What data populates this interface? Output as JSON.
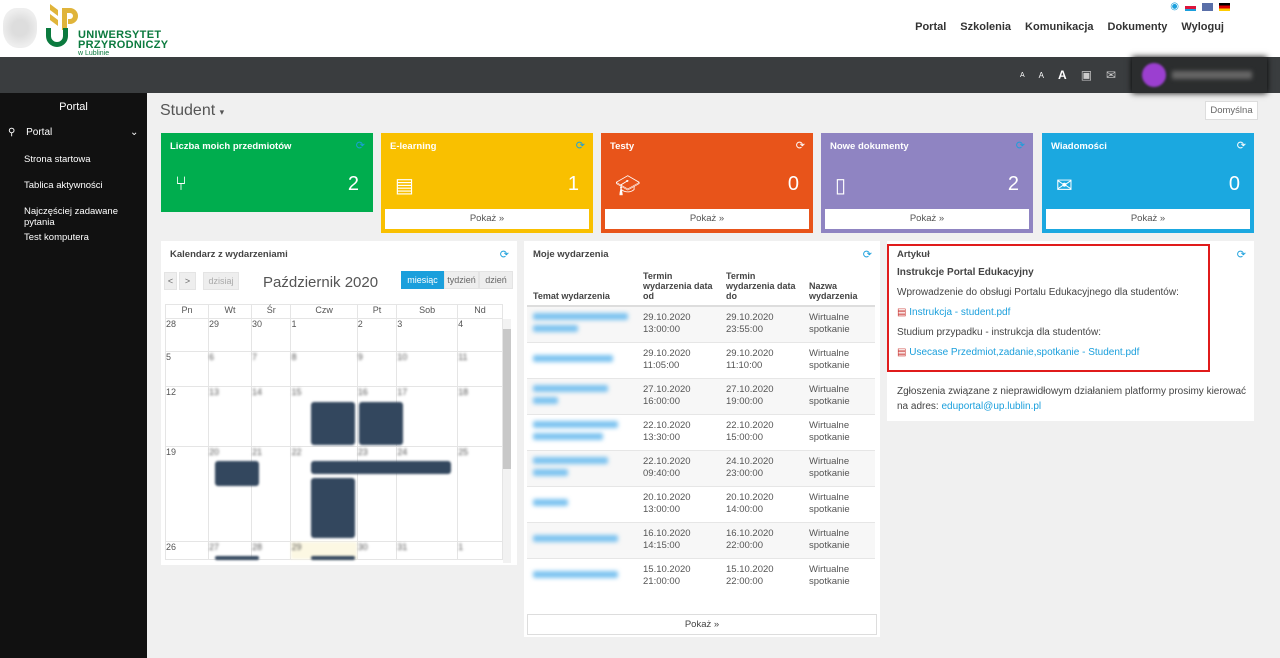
{
  "header": {
    "logo_text": [
      "UNIWERSYTET",
      "PRZYRODNICZY"
    ],
    "logo_sub": "w Lublinie",
    "nav": [
      "Portal",
      "Szkolenia",
      "Komunikacja",
      "Dokumenty",
      "Wyloguj"
    ],
    "languages": [
      "pl",
      "en",
      "de"
    ],
    "font_sizes": [
      "A",
      "A",
      "A"
    ]
  },
  "sidebar": {
    "title": "Portal",
    "section": "Portal",
    "items": [
      "Strona startowa",
      "Tablica aktywności",
      "Najczęściej zadawane pytania",
      "Test komputera"
    ]
  },
  "main": {
    "title": "Student",
    "layout_button": "Domyślna"
  },
  "tiles": [
    {
      "title": "Liczba moich przedmiotów",
      "count": "2",
      "icon": "branch-icon",
      "color": "#00ad4e"
    },
    {
      "title": "E-learning",
      "count": "1",
      "icon": "presentation-icon",
      "color": "#f9c000",
      "button": "Pokaż »"
    },
    {
      "title": "Testy",
      "count": "0",
      "icon": "graduation-cap-icon",
      "color": "#e8541a",
      "button": "Pokaż »"
    },
    {
      "title": "Nowe dokumenty",
      "count": "2",
      "icon": "document-icon",
      "color": "#8f84c2",
      "button": "Pokaż »"
    },
    {
      "title": "Wiadomości",
      "count": "0",
      "icon": "envelope-icon",
      "color": "#1ba8e0",
      "button": "Pokaż »"
    }
  ],
  "calendar": {
    "title": "Kalendarz z wydarzeniami",
    "prev": "<",
    "next": ">",
    "today": "dzisiaj",
    "month": "Październik 2020",
    "views": [
      "miesiąc",
      "tydzień",
      "dzień"
    ],
    "days": [
      "Pn",
      "Wt",
      "Śr",
      "Czw",
      "Pt",
      "Sob",
      "Nd"
    ],
    "weeks": [
      [
        "28",
        "29",
        "30",
        "1",
        "2",
        "3",
        "4"
      ],
      [
        "5",
        "6",
        "7",
        "8",
        "9",
        "10",
        "11"
      ],
      [
        "12",
        "13",
        "14",
        "15",
        "16",
        "17",
        "18"
      ],
      [
        "19",
        "20",
        "21",
        "22",
        "23",
        "24",
        "25"
      ],
      [
        "26",
        "27",
        "28",
        "29",
        "30",
        "31",
        "1"
      ]
    ]
  },
  "events": {
    "title": "Moje wydarzenia",
    "columns": [
      "Temat wydarzenia",
      "Termin wydarzenia data od",
      "Termin wydarzenia data do",
      "Nazwa wydarzenia"
    ],
    "rows": [
      {
        "from": "29.10.2020 13:00:00",
        "to": "29.10.2020 23:55:00",
        "name": "Wirtualne spotkanie"
      },
      {
        "from": "29.10.2020 11:05:00",
        "to": "29.10.2020 11:10:00",
        "name": "Wirtualne spotkanie"
      },
      {
        "from": "27.10.2020 16:00:00",
        "to": "27.10.2020 19:00:00",
        "name": "Wirtualne spotkanie"
      },
      {
        "from": "22.10.2020 13:30:00",
        "to": "22.10.2020 15:00:00",
        "name": "Wirtualne spotkanie"
      },
      {
        "from": "22.10.2020 09:40:00",
        "to": "24.10.2020 23:00:00",
        "name": "Wirtualne spotkanie"
      },
      {
        "from": "20.10.2020 13:00:00",
        "to": "20.10.2020 14:00:00",
        "name": "Wirtualne spotkanie"
      },
      {
        "from": "16.10.2020 14:15:00",
        "to": "16.10.2020 22:00:00",
        "name": "Wirtualne spotkanie"
      },
      {
        "from": "15.10.2020 21:00:00",
        "to": "15.10.2020 22:00:00",
        "name": "Wirtualne spotkanie"
      }
    ],
    "button": "Pokaż »"
  },
  "article": {
    "label": "Artykuł",
    "heading": "Instrukcje Portal Edukacyjny",
    "intro": "Wprowadzenie do obsługi Portalu Edukacyjnego dla studentów:",
    "link1": "Instrukcja - student.pdf",
    "case": "Studium przypadku - instrukcja dla studentów:",
    "link2": "Usecase Przedmiot,zadanie,spotkanie - Student.pdf",
    "contact": "Zgłoszenia związane z nieprawidłowym działaniem platformy prosimy kierować na adres:",
    "email": "eduportal@up.lublin.pl",
    "highlight_color": "#e01b1b"
  }
}
